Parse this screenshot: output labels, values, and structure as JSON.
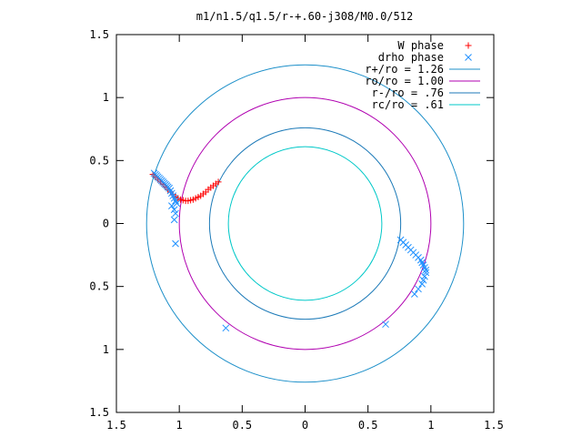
{
  "chart_data": {
    "type": "scatter",
    "title": "m1/n1.5/q1.5/r-+.60-j308/M0.0/512",
    "xlabel": "",
    "ylabel": "",
    "xlim": [
      -1.5,
      1.5
    ],
    "ylim": [
      -1.5,
      1.5
    ],
    "x_tick_labels": [
      "1.5",
      "1",
      "0.5",
      "0",
      "0.5",
      "1",
      "1.5"
    ],
    "x_tick_values": [
      -1.5,
      -1.0,
      -0.5,
      0,
      0.5,
      1.0,
      1.5
    ],
    "y_tick_labels": [
      "1.5",
      "1",
      "0.5",
      "0",
      "0.5",
      "1",
      "1.5"
    ],
    "y_tick_values": [
      1.5,
      1.0,
      0.5,
      0,
      -0.5,
      -1.0,
      -1.5
    ],
    "grid": false,
    "legend_position": "top-right",
    "series": [
      {
        "name": "W phase",
        "kind": "points",
        "marker": "plus",
        "color": "#ff0000",
        "x": [
          -1.21,
          -1.19,
          -1.17,
          -1.15,
          -1.13,
          -1.11,
          -1.09,
          -1.07,
          -1.05,
          -1.03,
          -1.01,
          -0.99,
          -0.97,
          -0.95,
          -0.93,
          -0.91,
          -0.89,
          -0.87,
          -0.85,
          -0.83,
          -0.81,
          -0.79,
          -0.77,
          -0.75,
          -0.73,
          -0.71,
          -0.69
        ],
        "y": [
          0.39,
          0.37,
          0.35,
          0.33,
          0.31,
          0.29,
          0.27,
          0.25,
          0.23,
          0.21,
          0.2,
          0.19,
          0.185,
          0.18,
          0.18,
          0.185,
          0.19,
          0.2,
          0.21,
          0.22,
          0.235,
          0.25,
          0.27,
          0.285,
          0.3,
          0.315,
          0.33
        ]
      },
      {
        "name": "drho phase",
        "kind": "points",
        "marker": "cross",
        "color": "#1e90ff",
        "x": [
          -1.2,
          -1.19,
          -1.18,
          -1.17,
          -1.16,
          -1.15,
          -1.14,
          -1.13,
          -1.12,
          -1.11,
          -1.1,
          -1.09,
          -1.08,
          -1.07,
          -1.06,
          -1.05,
          -1.04,
          -1.03,
          -1.02,
          -1.06,
          -1.04,
          -1.03,
          -1.04,
          -1.03,
          -0.63,
          0.76,
          0.78,
          0.8,
          0.82,
          0.84,
          0.86,
          0.88,
          0.9,
          0.92,
          0.93,
          0.94,
          0.95,
          0.96,
          0.96,
          0.95,
          0.94,
          0.93,
          0.9,
          0.87,
          0.64
        ],
        "y": [
          0.4,
          0.39,
          0.38,
          0.37,
          0.36,
          0.35,
          0.34,
          0.33,
          0.32,
          0.31,
          0.3,
          0.29,
          0.28,
          0.26,
          0.24,
          0.22,
          0.2,
          0.18,
          0.16,
          0.14,
          0.11,
          0.08,
          0.03,
          -0.16,
          -0.83,
          -0.13,
          -0.15,
          -0.17,
          -0.19,
          -0.21,
          -0.23,
          -0.25,
          -0.27,
          -0.29,
          -0.31,
          -0.33,
          -0.35,
          -0.37,
          -0.39,
          -0.42,
          -0.45,
          -0.48,
          -0.52,
          -0.56,
          -0.8
        ]
      },
      {
        "name": "r+/ro = 1.26",
        "kind": "circle",
        "radius": 1.26,
        "color": "#1c8fc9"
      },
      {
        "name": "ro/ro = 1.00",
        "kind": "circle",
        "radius": 1.0,
        "color": "#b000b0"
      },
      {
        "name": "r-/ro = .76",
        "kind": "circle",
        "radius": 0.76,
        "color": "#1c7ab8"
      },
      {
        "name": "rc/ro = .61",
        "kind": "circle",
        "radius": 0.61,
        "color": "#00c8c8"
      }
    ]
  }
}
